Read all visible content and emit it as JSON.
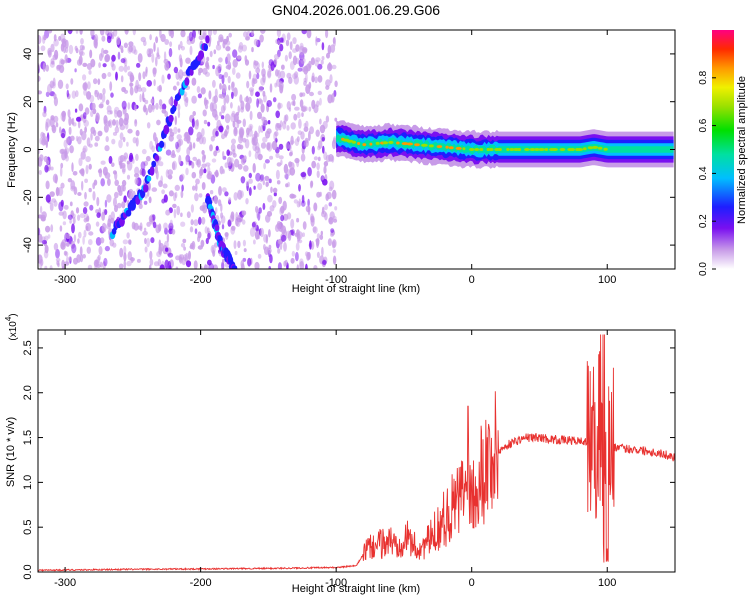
{
  "title": "GN04.2026.001.06.29.G06",
  "colors": {
    "snr_line": "#e8312f",
    "frame": "#000000",
    "background": "#ffffff"
  },
  "chart_data": [
    {
      "type": "heatmap",
      "xlabel": "Height of straight line (km)",
      "ylabel": "Frequency (Hz)",
      "xlim": [
        -320,
        150
      ],
      "ylim": [
        -50,
        50
      ],
      "x_ticks": [
        -300,
        -200,
        -100,
        0,
        100
      ],
      "x_tick_labels": [
        "-300",
        "-200",
        "-100",
        "0",
        "100"
      ],
      "y_ticks": [
        -40,
        -20,
        0,
        20,
        40
      ],
      "y_tick_labels": [
        "-40",
        "-20",
        "0",
        "20",
        "40"
      ],
      "colorbar": {
        "label": "Normalized spectral amplitude",
        "range": [
          0,
          1
        ],
        "ticks": [
          0.0,
          0.2,
          0.4,
          0.6,
          0.8
        ],
        "tick_labels": [
          "0.0",
          "0.2",
          "0.4",
          "0.6",
          "0.8"
        ]
      },
      "features": {
        "noise_region_x": [
          -320,
          -100
        ],
        "trace_left": {
          "x": [
            -265,
            -240,
            -225,
            -210,
            -195
          ],
          "y": [
            -35,
            -15,
            10,
            30,
            45
          ]
        },
        "trace_right": {
          "x": [
            -195,
            -185,
            -175
          ],
          "y": [
            -20,
            -40,
            -50
          ]
        },
        "carrier_band": {
          "x": [
            -100,
            -80,
            -60,
            -40,
            -20,
            0,
            20,
            40,
            60,
            80,
            90,
            100,
            120,
            150
          ],
          "y": [
            5,
            2,
            3,
            2,
            1,
            0,
            0,
            0,
            0,
            0,
            1,
            0,
            0,
            0
          ]
        }
      }
    },
    {
      "type": "line",
      "xlabel": "Height of straight line (km)",
      "ylabel": "SNR (10 * v/v)",
      "y_multiplier": "(x10",
      "y_multiplier_exp": "4",
      "y_multiplier_close": ")",
      "xlim": [
        -320,
        150
      ],
      "ylim": [
        0,
        27000
      ],
      "x_ticks": [
        -300,
        -200,
        -100,
        0,
        100
      ],
      "x_tick_labels": [
        "-300",
        "-200",
        "-100",
        "0",
        "100"
      ],
      "y_ticks": [
        0,
        5000,
        10000,
        15000,
        20000,
        25000
      ],
      "y_tick_labels": [
        "0.0",
        "0.5",
        "1.0",
        "1.5",
        "2.0",
        "2.5"
      ],
      "series": [
        {
          "name": "SNR",
          "x": [
            -320,
            -250,
            -150,
            -100,
            -85,
            -78,
            -70,
            -60,
            -55,
            -50,
            -45,
            -40,
            -35,
            -30,
            -25,
            -20,
            -15,
            -10,
            -5,
            0,
            10,
            20,
            30,
            40,
            50,
            60,
            70,
            80,
            88,
            92,
            95,
            98,
            100,
            102,
            105,
            110,
            120,
            130,
            140,
            150
          ],
          "y": [
            200,
            300,
            400,
            500,
            700,
            2500,
            3000,
            3500,
            3000,
            4000,
            3500,
            2500,
            3000,
            3800,
            5000,
            6000,
            7000,
            8000,
            9000,
            9500,
            12000,
            13500,
            14500,
            15000,
            15000,
            14800,
            14700,
            14600,
            14500,
            14000,
            17000,
            3000,
            12000,
            14000,
            14000,
            13800,
            13700,
            13500,
            13200,
            12800
          ]
        }
      ]
    }
  ]
}
